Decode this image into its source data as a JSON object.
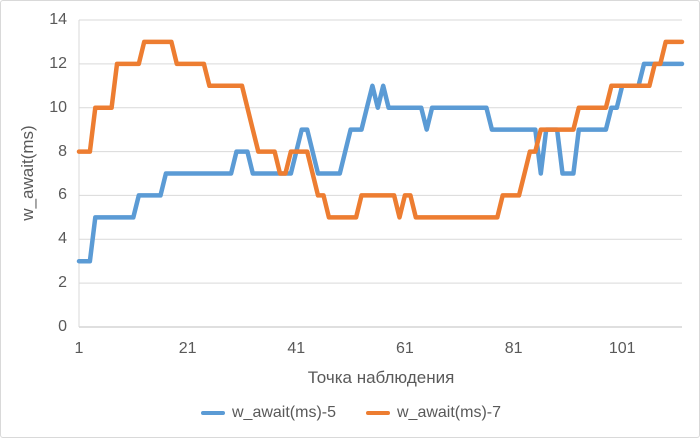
{
  "chart_data": {
    "type": "line",
    "title": "",
    "xlabel": "Точка наблюдения",
    "ylabel": "w_await(ms)",
    "x_ticks": [
      1,
      21,
      41,
      61,
      81,
      101
    ],
    "y_ticks": [
      0,
      2,
      4,
      6,
      8,
      10,
      12,
      14
    ],
    "ylim": [
      0,
      14
    ],
    "xlim": [
      1,
      112
    ],
    "grid": true,
    "legend_position": "bottom",
    "series": [
      {
        "name": "w_await(ms)-5",
        "color": "#5B9BD5",
        "values": [
          3,
          3,
          3,
          5,
          5,
          5,
          5,
          5,
          5,
          5,
          5,
          6,
          6,
          6,
          6,
          6,
          7,
          7,
          7,
          7,
          7,
          7,
          7,
          7,
          7,
          7,
          7,
          7,
          7,
          8,
          8,
          8,
          7,
          7,
          7,
          7,
          7,
          7,
          7,
          7,
          8,
          9,
          9,
          8,
          7,
          7,
          7,
          7,
          7,
          8,
          9,
          9,
          9,
          10,
          11,
          10,
          11,
          10,
          10,
          10,
          10,
          10,
          10,
          10,
          9,
          10,
          10,
          10,
          10,
          10,
          10,
          10,
          10,
          10,
          10,
          10,
          9,
          9,
          9,
          9,
          9,
          9,
          9,
          9,
          9,
          7,
          9,
          9,
          9,
          7,
          7,
          7,
          9,
          9,
          9,
          9,
          9,
          9,
          10,
          10,
          11,
          11,
          11,
          11,
          12,
          12,
          12,
          12,
          12,
          12,
          12,
          12
        ]
      },
      {
        "name": "w_await(ms)-7",
        "color": "#ED7D31",
        "values": [
          8,
          8,
          8,
          10,
          10,
          10,
          10,
          12,
          12,
          12,
          12,
          12,
          13,
          13,
          13,
          13,
          13,
          13,
          12,
          12,
          12,
          12,
          12,
          12,
          11,
          11,
          11,
          11,
          11,
          11,
          11,
          10,
          9,
          8,
          8,
          8,
          8,
          7,
          7,
          8,
          8,
          8,
          8,
          7,
          6,
          6,
          5,
          5,
          5,
          5,
          5,
          5,
          6,
          6,
          6,
          6,
          6,
          6,
          6,
          5,
          6,
          6,
          5,
          5,
          5,
          5,
          5,
          5,
          5,
          5,
          5,
          5,
          5,
          5,
          5,
          5,
          5,
          5,
          6,
          6,
          6,
          6,
          7,
          8,
          8,
          9,
          9,
          9,
          9,
          9,
          9,
          9,
          10,
          10,
          10,
          10,
          10,
          10,
          11,
          11,
          11,
          11,
          11,
          11,
          11,
          11,
          12,
          12,
          13,
          13,
          13,
          13
        ]
      }
    ]
  },
  "colors": {
    "background": "#FFFFFF",
    "border": "#D9D9D9",
    "gridline": "#D9D9D9",
    "axis_line": "#BFBFBF",
    "text": "#595959"
  }
}
